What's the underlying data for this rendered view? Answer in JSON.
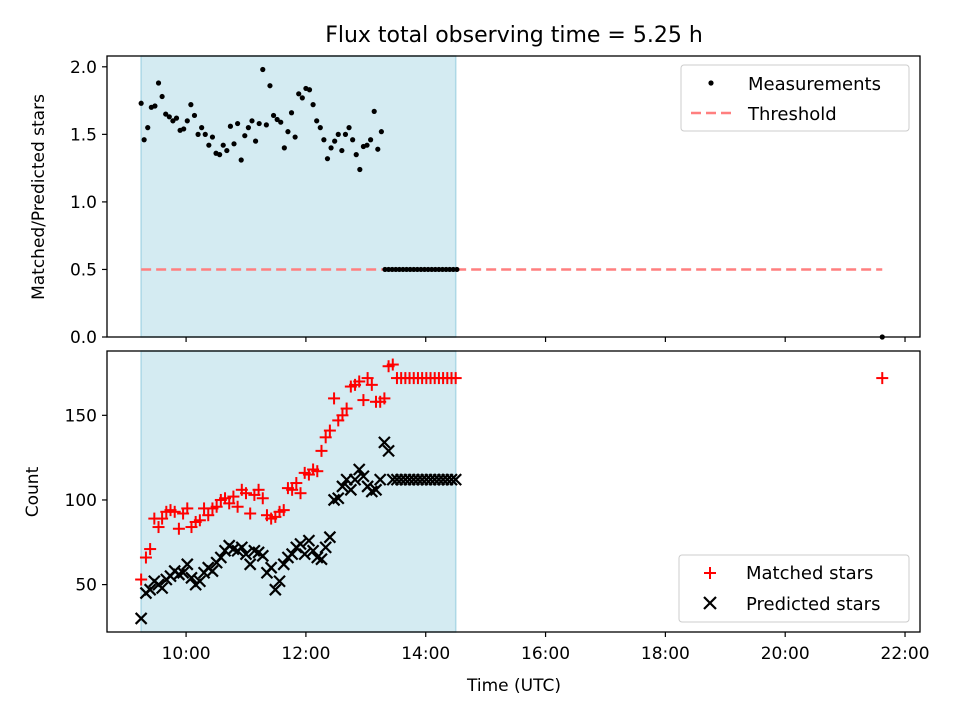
{
  "figure": {
    "title": "Flux total observing time = 5.25 h"
  },
  "colors": {
    "shade": "#add8e6",
    "threshold": "#ff7f7f",
    "matched": "#ff0000",
    "predicted": "#000000",
    "measurements": "#000000"
  },
  "chart_data": [
    {
      "type": "scatter",
      "panel": "top",
      "title": "Flux total observing time = 5.25 h",
      "xlabel": "",
      "ylabel": "Matched/Predicted stars",
      "x_unit": "hours UTC",
      "xlim": [
        8.68,
        22.25
      ],
      "ylim": [
        0,
        2.08
      ],
      "yticks": [
        0.0,
        0.5,
        1.0,
        1.5,
        2.0
      ],
      "ytick_labels": [
        "0.0",
        "0.5",
        "1.0",
        "1.5",
        "2.0"
      ],
      "shaded_span": [
        9.25,
        14.5
      ],
      "legend_position": "top-right",
      "legend": [
        "Measurements",
        "Threshold"
      ],
      "series": [
        {
          "name": "Measurements",
          "marker": "point",
          "x": [
            9.25,
            9.3,
            9.36,
            9.42,
            9.48,
            9.54,
            9.6,
            9.66,
            9.72,
            9.78,
            9.84,
            9.9,
            9.96,
            10.02,
            10.08,
            10.14,
            10.2,
            10.26,
            10.32,
            10.38,
            10.44,
            10.5,
            10.56,
            10.62,
            10.68,
            10.74,
            10.8,
            10.86,
            10.92,
            10.98,
            11.04,
            11.1,
            11.16,
            11.22,
            11.28,
            11.34,
            11.4,
            11.46,
            11.52,
            11.58,
            11.64,
            11.7,
            11.76,
            11.82,
            11.88,
            11.94,
            12.0,
            12.06,
            12.12,
            12.18,
            12.24,
            12.3,
            12.36,
            12.42,
            12.48,
            12.54,
            12.6,
            12.66,
            12.72,
            12.78,
            12.84,
            12.9,
            12.96,
            13.02,
            13.08,
            13.14,
            13.2,
            13.26,
            13.32,
            13.38,
            13.44,
            13.5,
            13.56,
            13.62,
            13.68,
            13.74,
            13.8,
            13.86,
            13.92,
            13.98,
            14.04,
            14.1,
            14.16,
            14.22,
            14.28,
            14.34,
            14.4,
            14.46,
            14.52,
            21.62
          ],
          "y": [
            1.73,
            1.46,
            1.55,
            1.7,
            1.71,
            1.88,
            1.78,
            1.65,
            1.63,
            1.6,
            1.62,
            1.53,
            1.54,
            1.6,
            1.72,
            1.64,
            1.5,
            1.55,
            1.5,
            1.42,
            1.48,
            1.36,
            1.35,
            1.42,
            1.38,
            1.56,
            1.43,
            1.58,
            1.31,
            1.49,
            1.55,
            1.6,
            1.45,
            1.58,
            1.98,
            1.57,
            1.86,
            1.64,
            1.61,
            1.59,
            1.4,
            1.52,
            1.66,
            1.48,
            1.8,
            1.77,
            1.84,
            1.83,
            1.72,
            1.6,
            1.55,
            1.46,
            1.32,
            1.4,
            1.45,
            1.5,
            1.38,
            1.5,
            1.55,
            1.46,
            1.35,
            1.24,
            1.41,
            1.42,
            1.46,
            1.67,
            1.39,
            1.52,
            0.5,
            0.5,
            0.5,
            0.5,
            0.5,
            0.5,
            0.5,
            0.5,
            0.5,
            0.5,
            0.5,
            0.5,
            0.5,
            0.5,
            0.5,
            0.5,
            0.5,
            0.5,
            0.5,
            0.5,
            0.5,
            0.0
          ]
        },
        {
          "name": "Threshold",
          "marker": "dashed-line",
          "x": [
            9.25,
            21.62
          ],
          "y": [
            0.5,
            0.5
          ]
        }
      ]
    },
    {
      "type": "scatter",
      "panel": "bottom",
      "title": "",
      "xlabel": "Time (UTC)",
      "ylabel": "Count",
      "x_unit": "hours UTC",
      "xlim": [
        8.68,
        22.25
      ],
      "ylim": [
        22,
        188
      ],
      "yticks": [
        50,
        100,
        150
      ],
      "ytick_labels": [
        "50",
        "100",
        "150"
      ],
      "xticks": [
        10,
        12,
        14,
        16,
        18,
        20,
        22
      ],
      "xtick_labels": [
        "10:00",
        "12:00",
        "14:00",
        "16:00",
        "18:00",
        "20:00",
        "22:00"
      ],
      "shaded_span": [
        9.25,
        14.5
      ],
      "legend_position": "bottom-right",
      "legend": [
        "Matched stars",
        "Predicted stars"
      ],
      "series": [
        {
          "name": "Matched stars",
          "marker": "plus",
          "x": [
            9.25,
            9.33,
            9.4,
            9.47,
            9.54,
            9.6,
            9.67,
            9.74,
            9.81,
            9.88,
            9.95,
            10.02,
            10.09,
            10.16,
            10.23,
            10.3,
            10.37,
            10.44,
            10.51,
            10.58,
            10.65,
            10.72,
            10.79,
            10.86,
            10.93,
            11.0,
            11.07,
            11.14,
            11.21,
            11.28,
            11.35,
            11.42,
            11.49,
            11.56,
            11.63,
            11.7,
            11.77,
            11.84,
            11.91,
            11.98,
            12.05,
            12.12,
            12.19,
            12.26,
            12.33,
            12.4,
            12.47,
            12.54,
            12.61,
            12.68,
            12.75,
            12.82,
            12.89,
            12.96,
            13.03,
            13.1,
            13.17,
            13.24,
            13.31,
            13.38,
            13.45,
            13.52,
            13.59,
            13.66,
            13.73,
            13.8,
            13.87,
            13.94,
            14.01,
            14.08,
            14.15,
            14.22,
            14.29,
            14.36,
            14.43,
            14.5,
            21.62
          ],
          "y": [
            53,
            66,
            71,
            89,
            84,
            89,
            93,
            94,
            93,
            83,
            92,
            95,
            84,
            87,
            88,
            95,
            91,
            95,
            96,
            100,
            101,
            98,
            102,
            96,
            106,
            104,
            92,
            103,
            106,
            101,
            91,
            89,
            90,
            93,
            94,
            107,
            106,
            110,
            104,
            116,
            115,
            118,
            117,
            129,
            137,
            141,
            160,
            147,
            150,
            154,
            167,
            168,
            170,
            159,
            172,
            168,
            158,
            158,
            160,
            179,
            180,
            172,
            172,
            172,
            172,
            172,
            172,
            172,
            172,
            172,
            172,
            172,
            172,
            172,
            172,
            172,
            172
          ]
        },
        {
          "name": "Predicted stars",
          "marker": "x",
          "x": [
            9.25,
            9.33,
            9.4,
            9.47,
            9.54,
            9.6,
            9.67,
            9.74,
            9.81,
            9.88,
            9.95,
            10.02,
            10.09,
            10.16,
            10.23,
            10.3,
            10.37,
            10.44,
            10.51,
            10.58,
            10.65,
            10.72,
            10.79,
            10.86,
            10.93,
            11.0,
            11.07,
            11.14,
            11.21,
            11.28,
            11.35,
            11.42,
            11.49,
            11.56,
            11.63,
            11.7,
            11.77,
            11.84,
            11.91,
            11.98,
            12.05,
            12.12,
            12.19,
            12.26,
            12.33,
            12.4,
            12.47,
            12.54,
            12.61,
            12.68,
            12.75,
            12.82,
            12.89,
            12.96,
            13.03,
            13.1,
            13.17,
            13.24,
            13.31,
            13.38,
            13.45,
            13.52,
            13.59,
            13.66,
            13.73,
            13.8,
            13.87,
            13.94,
            14.01,
            14.08,
            14.15,
            14.22,
            14.29,
            14.36,
            14.43,
            14.5
          ],
          "y": [
            30,
            45,
            47,
            52,
            50,
            48,
            53,
            55,
            58,
            56,
            57,
            62,
            54,
            50,
            52,
            57,
            60,
            58,
            63,
            66,
            70,
            73,
            71,
            70,
            72,
            68,
            62,
            70,
            69,
            67,
            57,
            60,
            47,
            52,
            62,
            66,
            68,
            72,
            74,
            68,
            76,
            70,
            66,
            65,
            72,
            78,
            100,
            101,
            108,
            112,
            106,
            112,
            118,
            114,
            108,
            105,
            106,
            112,
            134,
            129,
            112,
            112,
            112,
            112,
            112,
            112,
            112,
            112,
            112,
            112,
            112,
            112,
            112,
            112,
            112,
            112
          ]
        }
      ]
    }
  ]
}
